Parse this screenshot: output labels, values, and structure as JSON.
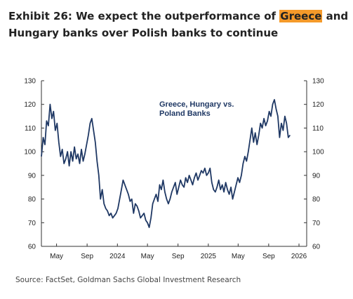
{
  "title": {
    "part1": "Exhibit 26: We expect the outperformance of ",
    "highlight": "Greece",
    "part2": " and Hungary banks over Polish banks to continue",
    "highlight_color": "#f59a2a"
  },
  "source": "Source: FactSet, Goldman Sachs Global Investment Research",
  "chart_data": {
    "type": "line",
    "title": "",
    "annotation_lines": [
      "Greece, Hungary vs.",
      "Poland Banks"
    ],
    "xlabel": "",
    "ylabel": "",
    "ylim": [
      60,
      130
    ],
    "y_ticks": [
      60,
      70,
      80,
      90,
      100,
      110,
      120,
      130
    ],
    "y_axis_sides": [
      "left",
      "right"
    ],
    "x_range": [
      "2023-03-01",
      "2026-02-01"
    ],
    "x_ticks": [
      {
        "label": "May",
        "date": "2023-05-01"
      },
      {
        "label": "Sep",
        "date": "2023-09-01"
      },
      {
        "label": "2024",
        "date": "2024-01-01"
      },
      {
        "label": "May",
        "date": "2024-05-01"
      },
      {
        "label": "Sep",
        "date": "2024-09-01"
      },
      {
        "label": "2025",
        "date": "2025-01-01"
      },
      {
        "label": "May",
        "date": "2025-05-01"
      },
      {
        "label": "Sep",
        "date": "2025-09-01"
      },
      {
        "label": "2026",
        "date": "2026-01-01"
      }
    ],
    "grid": false,
    "series_color": "#1f3864",
    "series": [
      {
        "name": "Greece, Hungary vs. Poland Banks",
        "points": [
          [
            "2023-03-01",
            98
          ],
          [
            "2023-03-08",
            106
          ],
          [
            "2023-03-15",
            103
          ],
          [
            "2023-03-22",
            113
          ],
          [
            "2023-03-29",
            111
          ],
          [
            "2023-04-05",
            120
          ],
          [
            "2023-04-12",
            114
          ],
          [
            "2023-04-19",
            117
          ],
          [
            "2023-04-26",
            109
          ],
          [
            "2023-05-03",
            112
          ],
          [
            "2023-05-10",
            104
          ],
          [
            "2023-05-17",
            98
          ],
          [
            "2023-05-24",
            101
          ],
          [
            "2023-05-31",
            95
          ],
          [
            "2023-06-07",
            97
          ],
          [
            "2023-06-14",
            100
          ],
          [
            "2023-06-21",
            94
          ],
          [
            "2023-06-28",
            100
          ],
          [
            "2023-07-05",
            96
          ],
          [
            "2023-07-12",
            102
          ],
          [
            "2023-07-19",
            97
          ],
          [
            "2023-07-26",
            99
          ],
          [
            "2023-08-02",
            95
          ],
          [
            "2023-08-09",
            101
          ],
          [
            "2023-08-16",
            96
          ],
          [
            "2023-08-23",
            99
          ],
          [
            "2023-08-30",
            103
          ],
          [
            "2023-09-06",
            107
          ],
          [
            "2023-09-13",
            112
          ],
          [
            "2023-09-20",
            114
          ],
          [
            "2023-09-27",
            109
          ],
          [
            "2023-10-04",
            104
          ],
          [
            "2023-10-11",
            96
          ],
          [
            "2023-10-18",
            90
          ],
          [
            "2023-10-25",
            80
          ],
          [
            "2023-11-01",
            84
          ],
          [
            "2023-11-08",
            78
          ],
          [
            "2023-11-15",
            76
          ],
          [
            "2023-11-22",
            75
          ],
          [
            "2023-11-29",
            73
          ],
          [
            "2023-12-06",
            74
          ],
          [
            "2023-12-13",
            72
          ],
          [
            "2023-12-20",
            73
          ],
          [
            "2023-12-27",
            74
          ],
          [
            "2024-01-03",
            76
          ],
          [
            "2024-01-10",
            80
          ],
          [
            "2024-01-17",
            84
          ],
          [
            "2024-01-24",
            88
          ],
          [
            "2024-01-31",
            86
          ],
          [
            "2024-02-07",
            84
          ],
          [
            "2024-02-14",
            82
          ],
          [
            "2024-02-21",
            79
          ],
          [
            "2024-02-28",
            80
          ],
          [
            "2024-03-06",
            74
          ],
          [
            "2024-03-13",
            78
          ],
          [
            "2024-03-20",
            77
          ],
          [
            "2024-03-27",
            75
          ],
          [
            "2024-04-03",
            72
          ],
          [
            "2024-04-10",
            73
          ],
          [
            "2024-04-17",
            74
          ],
          [
            "2024-04-24",
            71
          ],
          [
            "2024-05-01",
            70
          ],
          [
            "2024-05-08",
            68
          ],
          [
            "2024-05-15",
            72
          ],
          [
            "2024-05-22",
            78
          ],
          [
            "2024-05-29",
            80
          ],
          [
            "2024-06-05",
            82
          ],
          [
            "2024-06-12",
            79
          ],
          [
            "2024-06-19",
            86
          ],
          [
            "2024-06-26",
            84
          ],
          [
            "2024-07-03",
            88
          ],
          [
            "2024-07-10",
            83
          ],
          [
            "2024-07-17",
            80
          ],
          [
            "2024-07-24",
            78
          ],
          [
            "2024-07-31",
            80
          ],
          [
            "2024-08-07",
            83
          ],
          [
            "2024-08-14",
            85
          ],
          [
            "2024-08-21",
            87
          ],
          [
            "2024-08-28",
            82
          ],
          [
            "2024-09-04",
            85
          ],
          [
            "2024-09-11",
            88
          ],
          [
            "2024-09-18",
            86
          ],
          [
            "2024-09-25",
            85
          ],
          [
            "2024-10-02",
            89
          ],
          [
            "2024-10-09",
            87
          ],
          [
            "2024-10-16",
            90
          ],
          [
            "2024-10-23",
            88
          ],
          [
            "2024-10-30",
            86
          ],
          [
            "2024-11-06",
            89
          ],
          [
            "2024-11-13",
            91
          ],
          [
            "2024-11-20",
            88
          ],
          [
            "2024-11-27",
            90
          ],
          [
            "2024-12-04",
            92
          ],
          [
            "2024-12-11",
            91
          ],
          [
            "2024-12-18",
            93
          ],
          [
            "2024-12-25",
            90
          ],
          [
            "2025-01-01",
            91
          ],
          [
            "2025-01-08",
            93
          ],
          [
            "2025-01-15",
            87
          ],
          [
            "2025-01-22",
            84
          ],
          [
            "2025-01-29",
            83
          ],
          [
            "2025-02-05",
            85
          ],
          [
            "2025-02-12",
            88
          ],
          [
            "2025-02-19",
            84
          ],
          [
            "2025-02-26",
            86
          ],
          [
            "2025-03-05",
            83
          ],
          [
            "2025-03-12",
            87
          ],
          [
            "2025-03-19",
            84
          ],
          [
            "2025-03-26",
            82
          ],
          [
            "2025-04-02",
            85
          ],
          [
            "2025-04-09",
            80
          ],
          [
            "2025-04-16",
            83
          ],
          [
            "2025-04-23",
            86
          ],
          [
            "2025-04-30",
            89
          ],
          [
            "2025-05-07",
            87
          ],
          [
            "2025-05-14",
            90
          ],
          [
            "2025-05-21",
            95
          ],
          [
            "2025-05-28",
            98
          ],
          [
            "2025-06-04",
            96
          ],
          [
            "2025-06-11",
            100
          ],
          [
            "2025-06-18",
            105
          ],
          [
            "2025-06-25",
            110
          ],
          [
            "2025-07-02",
            104
          ],
          [
            "2025-07-09",
            108
          ],
          [
            "2025-07-16",
            103
          ],
          [
            "2025-07-23",
            107
          ],
          [
            "2025-07-30",
            112
          ],
          [
            "2025-08-06",
            110
          ],
          [
            "2025-08-13",
            114
          ],
          [
            "2025-08-20",
            111
          ],
          [
            "2025-08-27",
            113
          ],
          [
            "2025-09-03",
            117
          ],
          [
            "2025-09-10",
            115
          ],
          [
            "2025-09-17",
            120
          ],
          [
            "2025-09-24",
            122
          ],
          [
            "2025-10-01",
            118
          ],
          [
            "2025-10-08",
            115
          ],
          [
            "2025-10-15",
            106
          ],
          [
            "2025-10-22",
            112
          ],
          [
            "2025-10-29",
            109
          ],
          [
            "2025-11-05",
            115
          ],
          [
            "2025-11-12",
            112
          ],
          [
            "2025-11-19",
            106
          ],
          [
            "2025-11-26",
            107
          ]
        ]
      }
    ]
  }
}
